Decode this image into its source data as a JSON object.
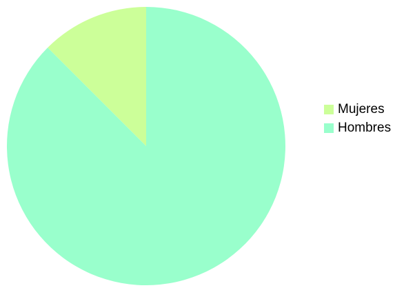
{
  "chart_data": {
    "type": "pie",
    "title": "",
    "start_angle_deg": 0,
    "direction": "counterclockwise",
    "slices": [
      {
        "label": "Mujeres",
        "value": 12.5,
        "color": "#ccff99"
      },
      {
        "label": "Hombres",
        "value": 87.5,
        "color": "#99ffcc"
      }
    ],
    "legend_position": "right"
  }
}
